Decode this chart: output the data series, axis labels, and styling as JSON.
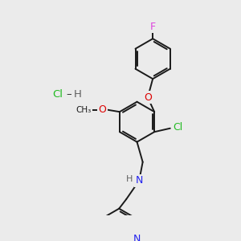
{
  "bg_color": "#ebebeb",
  "bond_color": "#1a1a1a",
  "atom_colors": {
    "F": "#dd44dd",
    "O": "#dd0000",
    "Cl": "#22bb22",
    "N": "#2222ee",
    "H": "#606060",
    "C": "#1a1a1a"
  }
}
